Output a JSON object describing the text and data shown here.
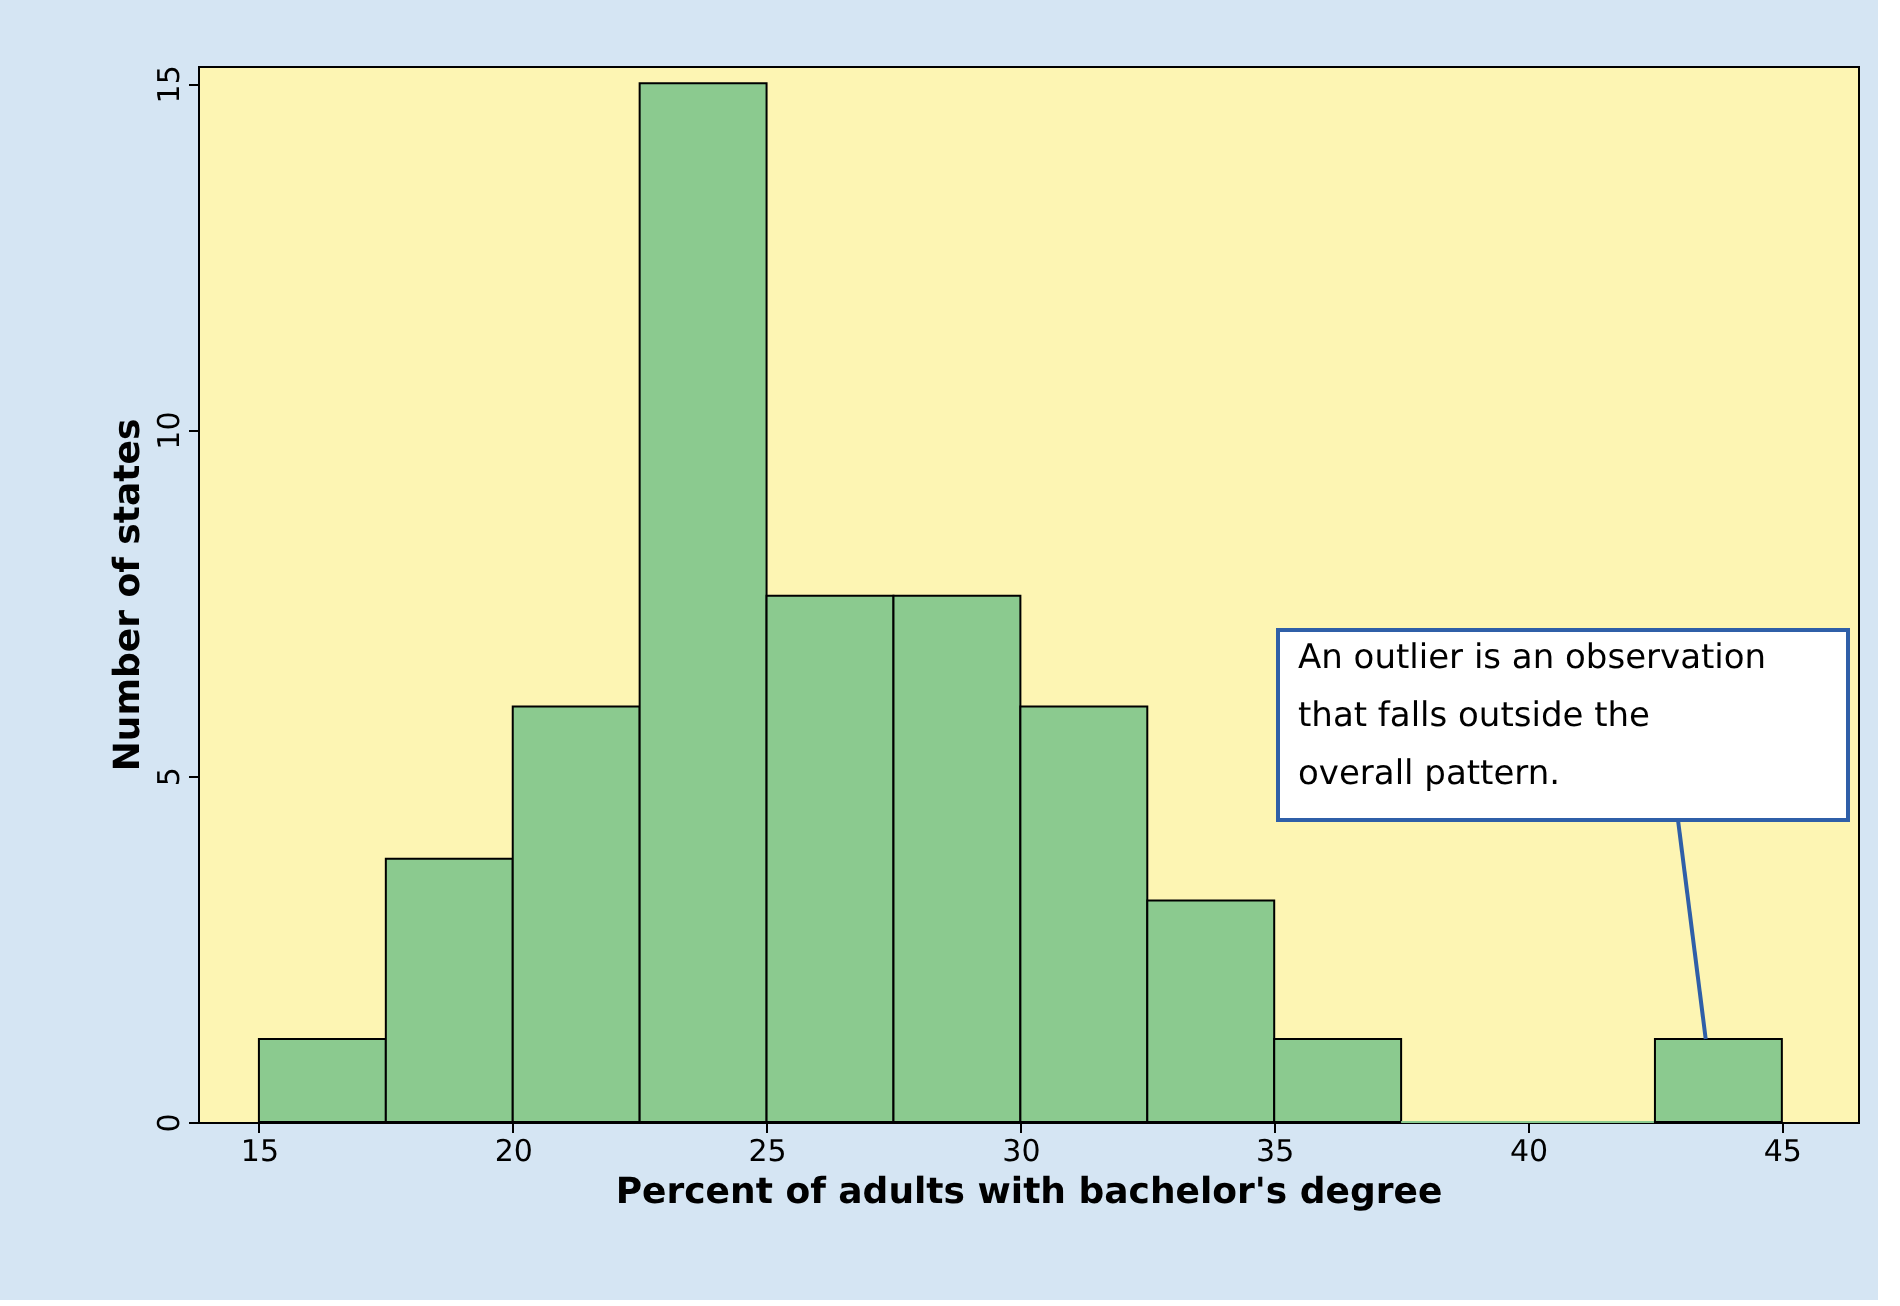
{
  "chart_data": {
    "type": "histogram",
    "xlabel": "Percent of adults with bachelor's degree",
    "ylabel": "Number of states",
    "bins": [
      15,
      17.5,
      20,
      22.5,
      25,
      27.5,
      30,
      32.5,
      35,
      37.5,
      40,
      42.5,
      45
    ],
    "values": [
      1.2,
      3.8,
      6,
      15,
      7.6,
      7.6,
      6,
      3.2,
      1.2,
      0,
      0,
      1.2
    ],
    "color": "#8bca8f",
    "xlim": [
      13.8,
      46.5
    ],
    "xticks": [
      15,
      20,
      25,
      30,
      35,
      40,
      45
    ],
    "ylim": [
      0,
      15.25
    ],
    "yticks": [
      0,
      5,
      10,
      15
    ],
    "grid": false,
    "annotations": [
      {
        "text": "An outlier is an observation\nthat falls outside the\noverall pattern.",
        "x": 43.5,
        "y": 1.2
      }
    ]
  }
}
